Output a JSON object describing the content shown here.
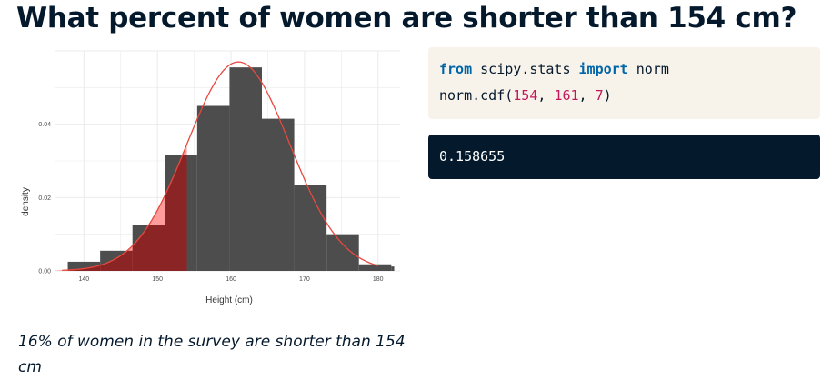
{
  "slide": {
    "title": "What percent of women are shorter than 154 cm?",
    "caption": "16% of women in the survey are shorter than 154 cm"
  },
  "code": {
    "line1": {
      "kw1": "from",
      "mod": " scipy.stats ",
      "kw2": "import",
      "name": " norm"
    },
    "line2": {
      "fn": "norm.cdf(",
      "a1": "154",
      "sep1": ", ",
      "a2": "161",
      "sep2": ", ",
      "a3": "7",
      "close": ")"
    }
  },
  "output": {
    "value": "0.158655"
  },
  "chart_data": {
    "type": "histogram",
    "xlabel": "Height (cm)",
    "ylabel": "density",
    "xlim": [
      136,
      183
    ],
    "ylim": [
      0,
      0.06
    ],
    "x_ticks": [
      140,
      150,
      160,
      170,
      180
    ],
    "y_ticks": [
      0.0,
      0.02,
      0.04
    ],
    "y_tick_labels": [
      "0.00",
      "0.02",
      "0.04"
    ],
    "bins": [
      {
        "x0": 137.8,
        "x1": 142.2,
        "density": 0.0025
      },
      {
        "x0": 142.2,
        "x1": 146.6,
        "density": 0.0055
      },
      {
        "x0": 146.6,
        "x1": 151.0,
        "density": 0.0125
      },
      {
        "x0": 151.0,
        "x1": 155.4,
        "density": 0.0315
      },
      {
        "x0": 155.4,
        "x1": 159.8,
        "density": 0.045
      },
      {
        "x0": 159.8,
        "x1": 164.2,
        "density": 0.0555
      },
      {
        "x0": 164.2,
        "x1": 168.6,
        "density": 0.0415
      },
      {
        "x0": 168.6,
        "x1": 173.0,
        "density": 0.0235
      },
      {
        "x0": 173.0,
        "x1": 177.4,
        "density": 0.01
      },
      {
        "x0": 177.4,
        "x1": 181.8,
        "density": 0.0018
      },
      {
        "x0": 181.8,
        "x1": 182.2,
        "density": 0.0012
      }
    ],
    "normal_curve": {
      "mean": 161,
      "sd": 7,
      "x_range": [
        137,
        180
      ]
    },
    "shaded_below": 154,
    "colors": {
      "bar": "#4d4d4d",
      "curve": "#e8493f",
      "shade": "#ff8c8c",
      "shade_over_bar": "#8b2424",
      "grid": "#ebebeb"
    },
    "grid": true
  }
}
